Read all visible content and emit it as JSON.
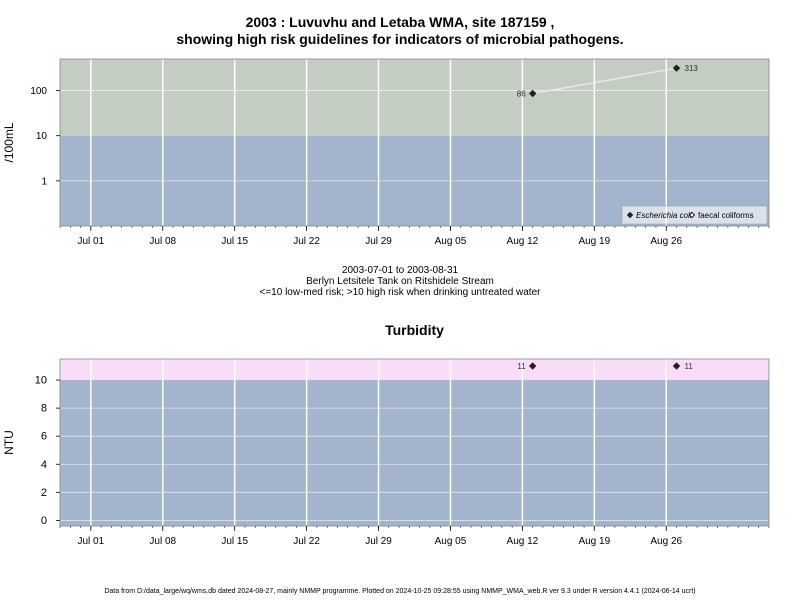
{
  "page": {
    "title_line1": "2003 : Luvuvhu and Letaba WMA, site 187159 ,",
    "title_line2": "showing high risk guidelines for indicators of microbial pathogens.",
    "info_line1": "2003-07-01 to 2003-08-31",
    "info_line2": "Berlyn Letsitele Tank on Ritshidele Stream",
    "info_line3": "<=10 low-med risk; >10 high risk when drinking untreated water",
    "footer": "Data from D:/data_large/wq/wms.db dated 2024-08-27, mainly NMMP programme. Plotted on 2024-10-25 09:28:55 using NMMP_WMA_web.R ver 9.3 under R version 4.4.1 (2024-06-14 ucrt)"
  },
  "colors": {
    "low_zone": "#a3b4cd",
    "high_zone_microbial": "#c3cdc2",
    "high_zone_turbidity": "#f8dcf8",
    "grid": "#ffffff",
    "line": "#e8e8e8",
    "point": "#222222"
  },
  "chart_data": [
    {
      "type": "line",
      "title": "",
      "xlabel": "",
      "ylabel": "/100mL",
      "y_scale": "log",
      "ylim": [
        0.1,
        500
      ],
      "threshold": 10,
      "x_range": [
        "2003-06-28",
        "2003-09-05"
      ],
      "x_ticks": [
        "2003-07-01",
        "2003-07-08",
        "2003-07-15",
        "2003-07-22",
        "2003-07-29",
        "2003-08-05",
        "2003-08-12",
        "2003-08-19",
        "2003-08-26"
      ],
      "x_tick_labels": [
        "Jul 01",
        "Jul 08",
        "Jul 15",
        "Jul 22",
        "Jul 29",
        "Aug 05",
        "Aug 12",
        "Aug 19",
        "Aug 26"
      ],
      "y_ticks": [
        1,
        10,
        100
      ],
      "y_tick_labels": [
        "1",
        "10",
        "100"
      ],
      "grid": true,
      "legend_position": "bottom-right",
      "series": [
        {
          "name": "Escherichia coli",
          "marker": "filled-diamond",
          "x": [
            "2003-08-13",
            "2003-08-27"
          ],
          "y": [
            86,
            313
          ],
          "labels": [
            "86",
            "313"
          ]
        },
        {
          "name": "faecal coliforms",
          "marker": "open-diamond",
          "x": [],
          "y": []
        }
      ]
    },
    {
      "type": "line",
      "title": "Turbidity",
      "xlabel": "",
      "ylabel": "NTU",
      "y_scale": "linear",
      "ylim": [
        -0.4,
        11.5
      ],
      "threshold": 10,
      "x_range": [
        "2003-06-28",
        "2003-09-05"
      ],
      "x_ticks": [
        "2003-07-01",
        "2003-07-08",
        "2003-07-15",
        "2003-07-22",
        "2003-07-29",
        "2003-08-05",
        "2003-08-12",
        "2003-08-19",
        "2003-08-26"
      ],
      "x_tick_labels": [
        "Jul 01",
        "Jul 08",
        "Jul 15",
        "Jul 22",
        "Jul 29",
        "Aug 05",
        "Aug 12",
        "Aug 19",
        "Aug 26"
      ],
      "y_ticks": [
        0,
        2,
        4,
        6,
        8,
        10
      ],
      "y_tick_labels": [
        "0",
        "2",
        "4",
        "6",
        "8",
        "10"
      ],
      "grid": true,
      "series": [
        {
          "marker": "filled-diamond",
          "x": [
            "2003-08-13",
            "2003-08-27"
          ],
          "y": [
            11,
            11
          ],
          "labels": [
            "11",
            "11"
          ]
        }
      ]
    }
  ]
}
